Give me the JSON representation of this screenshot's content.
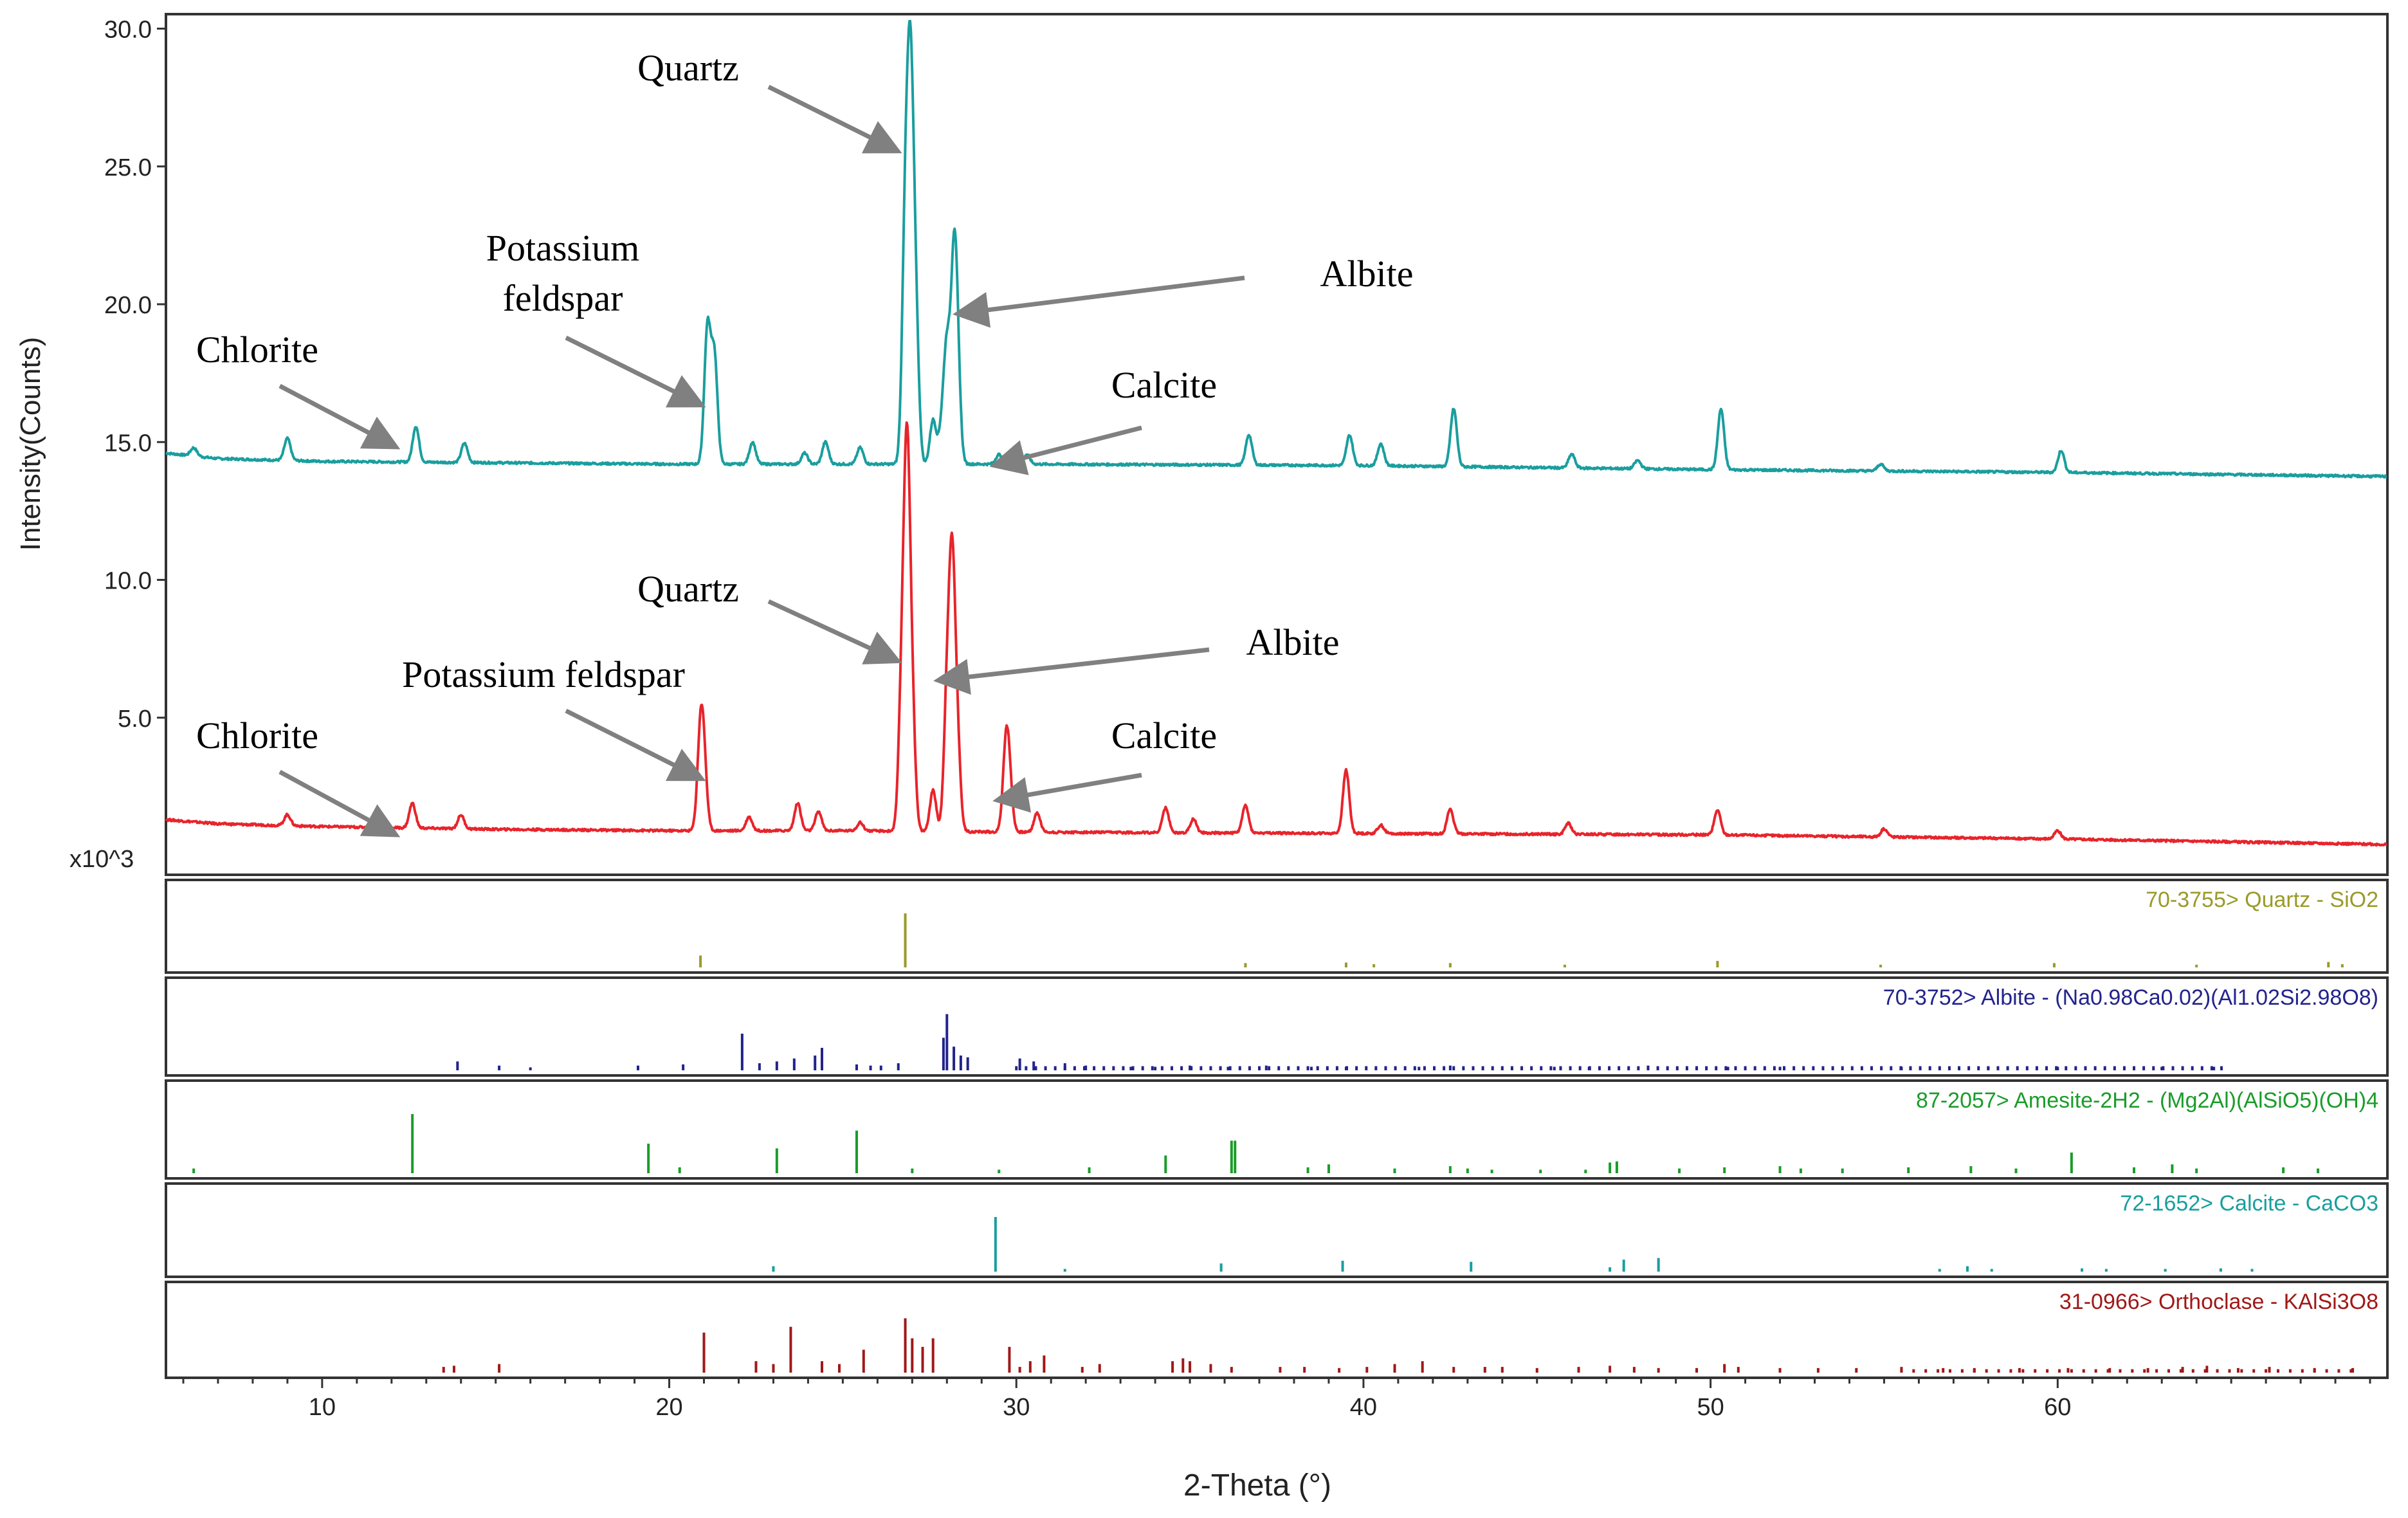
{
  "chart_data": {
    "type": "line",
    "xlabel": "2-Theta (°)",
    "ylabel": "Intensity(Counts)",
    "y_multiplier": "x10^3",
    "xlim": [
      5.5,
      69.5
    ],
    "ylim": [
      0,
      30
    ],
    "x_ticks": [
      10,
      20,
      30,
      40,
      50,
      60
    ],
    "y_ticks": [
      "5.0",
      "10.0",
      "15.0",
      "20.0",
      "25.0",
      "30.0"
    ],
    "series": [
      {
        "color": "#1a9e9e",
        "baseline": [
          [
            5.5,
            14.6
          ],
          [
            7,
            14.4
          ],
          [
            10,
            14.3
          ],
          [
            15,
            14.25
          ],
          [
            20,
            14.2
          ],
          [
            25,
            14.2
          ],
          [
            30,
            14.2
          ],
          [
            40,
            14.15
          ],
          [
            50,
            14.0
          ],
          [
            60,
            13.9
          ],
          [
            69.5,
            13.75
          ]
        ],
        "peaks": [
          [
            6.3,
            0.3
          ],
          [
            9.0,
            0.8
          ],
          [
            12.7,
            1.3
          ],
          [
            14.1,
            0.7
          ],
          [
            21.1,
            4.9
          ],
          [
            21.3,
            3.9
          ],
          [
            22.4,
            0.8
          ],
          [
            23.9,
            0.4
          ],
          [
            24.5,
            0.8
          ],
          [
            25.5,
            0.6
          ],
          [
            26.8,
            8.4
          ],
          [
            26.95,
            12.6
          ],
          [
            27.1,
            5.0
          ],
          [
            27.6,
            1.6
          ],
          [
            27.85,
            1.2
          ],
          [
            28.0,
            4.0
          ],
          [
            28.2,
            6.5
          ],
          [
            28.3,
            3.0
          ],
          [
            29.5,
            0.35
          ],
          [
            30.3,
            0.35
          ],
          [
            36.7,
            1.1
          ],
          [
            39.6,
            1.1
          ],
          [
            40.5,
            0.8
          ],
          [
            42.6,
            2.1
          ],
          [
            46.0,
            0.5
          ],
          [
            47.9,
            0.3
          ],
          [
            50.3,
            2.2
          ],
          [
            54.9,
            0.25
          ],
          [
            60.1,
            0.8
          ]
        ]
      },
      {
        "color": "#e8242b",
        "baseline": [
          [
            5.5,
            1.3
          ],
          [
            7,
            1.15
          ],
          [
            10,
            1.05
          ],
          [
            15,
            0.95
          ],
          [
            20,
            0.9
          ],
          [
            25,
            0.9
          ],
          [
            30,
            0.85
          ],
          [
            40,
            0.8
          ],
          [
            50,
            0.75
          ],
          [
            60,
            0.6
          ],
          [
            69.5,
            0.4
          ]
        ],
        "peaks": [
          [
            9.0,
            0.4
          ],
          [
            12.6,
            0.9
          ],
          [
            14.0,
            0.5
          ],
          [
            20.9,
            3.3
          ],
          [
            21.0,
            2.0
          ],
          [
            22.3,
            0.5
          ],
          [
            23.7,
            1.0
          ],
          [
            24.3,
            0.7
          ],
          [
            25.5,
            0.3
          ],
          [
            26.7,
            5.0
          ],
          [
            26.85,
            12.6
          ],
          [
            27.0,
            4.0
          ],
          [
            27.6,
            1.5
          ],
          [
            28.0,
            4.5
          ],
          [
            28.15,
            8.9
          ],
          [
            28.3,
            3.0
          ],
          [
            29.7,
            2.9
          ],
          [
            29.8,
            1.5
          ],
          [
            30.6,
            0.7
          ],
          [
            34.3,
            0.9
          ],
          [
            35.1,
            0.5
          ],
          [
            36.6,
            1.0
          ],
          [
            39.5,
            2.3
          ],
          [
            40.5,
            0.3
          ],
          [
            42.5,
            0.9
          ],
          [
            45.9,
            0.4
          ],
          [
            50.2,
            0.9
          ],
          [
            55.0,
            0.3
          ],
          [
            60.0,
            0.3
          ]
        ]
      }
    ],
    "annotations": [
      {
        "id": "quartz-top",
        "lines": [
          "Quartz"
        ]
      },
      {
        "id": "albite-top",
        "lines": [
          "Albite"
        ]
      },
      {
        "id": "kfeldspar-top",
        "lines": [
          "Potassium",
          "feldspar"
        ]
      },
      {
        "id": "chlorite-top",
        "lines": [
          "Chlorite"
        ]
      },
      {
        "id": "calcite-top",
        "lines": [
          "Calcite"
        ]
      },
      {
        "id": "quartz-bottom",
        "lines": [
          "Quartz"
        ]
      },
      {
        "id": "albite-bottom",
        "lines": [
          "Albite"
        ]
      },
      {
        "id": "kfeldspar-bottom",
        "lines": [
          "Potassium  feldspar"
        ]
      },
      {
        "id": "chlorite-bottom",
        "lines": [
          "Chlorite"
        ]
      },
      {
        "id": "calcite-bottom",
        "lines": [
          "Calcite"
        ]
      }
    ],
    "reference_patterns": [
      {
        "label": "70-3755> Quartz - SiO2",
        "color": "#9a9a2a",
        "sticks": [
          [
            20.9,
            0.22
          ],
          [
            26.8,
            1.0
          ],
          [
            36.6,
            0.08
          ],
          [
            39.5,
            0.09
          ],
          [
            40.3,
            0.06
          ],
          [
            42.5,
            0.08
          ],
          [
            45.8,
            0.05
          ],
          [
            50.2,
            0.12
          ],
          [
            54.9,
            0.05
          ],
          [
            59.9,
            0.08
          ],
          [
            64.0,
            0.05
          ],
          [
            67.8,
            0.1
          ],
          [
            68.2,
            0.06
          ]
        ]
      },
      {
        "label": "70-3752> Albite - (Na0.98Ca0.02)(Al1.02Si2.98O8)",
        "color": "#23238c",
        "sticks": [
          [
            13.9,
            0.15
          ],
          [
            15.1,
            0.08
          ],
          [
            16.0,
            0.05
          ],
          [
            19.1,
            0.08
          ],
          [
            20.4,
            0.1
          ],
          [
            22.1,
            0.62
          ],
          [
            22.6,
            0.12
          ],
          [
            23.1,
            0.15
          ],
          [
            23.6,
            0.2
          ],
          [
            24.2,
            0.25
          ],
          [
            24.4,
            0.38
          ],
          [
            25.4,
            0.1
          ],
          [
            25.8,
            0.08
          ],
          [
            26.1,
            0.08
          ],
          [
            26.6,
            0.12
          ],
          [
            27.9,
            0.55
          ],
          [
            28.0,
            0.95
          ],
          [
            28.2,
            0.4
          ],
          [
            28.4,
            0.25
          ],
          [
            28.6,
            0.22
          ],
          [
            30.1,
            0.2
          ],
          [
            30.5,
            0.15
          ],
          [
            31.4,
            0.12
          ],
          [
            32.0,
            0.08
          ],
          [
            33.3,
            0.06
          ],
          [
            34.0,
            0.06
          ],
          [
            35.0,
            0.08
          ],
          [
            36.1,
            0.06
          ],
          [
            37.2,
            0.08
          ],
          [
            38.5,
            0.06
          ],
          [
            39.5,
            0.06
          ],
          [
            41.6,
            0.06
          ],
          [
            42.5,
            0.08
          ],
          [
            45.5,
            0.06
          ],
          [
            46.5,
            0.06
          ],
          [
            48.2,
            0.08
          ],
          [
            50.5,
            0.06
          ],
          [
            52.0,
            0.06
          ],
          [
            55.5,
            0.06
          ],
          [
            58.0,
            0.06
          ],
          [
            60.0,
            0.06
          ],
          [
            63.0,
            0.06
          ],
          [
            64.5,
            0.06
          ]
        ],
        "dense_start": 30.0,
        "dense_end": 64.8,
        "dense_step": 0.28,
        "dense_height": 0.07
      },
      {
        "label": "87-2057> Amesite-2H2 - (Mg2Al)(AlSiO5)(OH)4",
        "color": "#1a9c2a",
        "sticks": [
          [
            6.3,
            0.08
          ],
          [
            12.6,
            1.0
          ],
          [
            19.4,
            0.5
          ],
          [
            20.3,
            0.1
          ],
          [
            23.1,
            0.42
          ],
          [
            25.4,
            0.72
          ],
          [
            27.0,
            0.08
          ],
          [
            29.5,
            0.06
          ],
          [
            32.1,
            0.1
          ],
          [
            34.3,
            0.3
          ],
          [
            36.2,
            0.55
          ],
          [
            36.3,
            0.55
          ],
          [
            38.4,
            0.1
          ],
          [
            39.0,
            0.15
          ],
          [
            40.9,
            0.08
          ],
          [
            42.5,
            0.12
          ],
          [
            43.0,
            0.08
          ],
          [
            43.7,
            0.06
          ],
          [
            45.1,
            0.06
          ],
          [
            46.4,
            0.06
          ],
          [
            47.1,
            0.18
          ],
          [
            47.3,
            0.2
          ],
          [
            49.1,
            0.08
          ],
          [
            50.4,
            0.1
          ],
          [
            52.0,
            0.12
          ],
          [
            52.6,
            0.08
          ],
          [
            53.8,
            0.08
          ],
          [
            55.7,
            0.1
          ],
          [
            57.5,
            0.12
          ],
          [
            58.8,
            0.08
          ],
          [
            60.4,
            0.35
          ],
          [
            62.2,
            0.1
          ],
          [
            63.3,
            0.15
          ],
          [
            64.0,
            0.08
          ],
          [
            66.5,
            0.1
          ],
          [
            67.5,
            0.08
          ]
        ]
      },
      {
        "label": "72-1652> Calcite - CaCO3",
        "color": "#1a9e9e",
        "sticks": [
          [
            23.0,
            0.1
          ],
          [
            29.4,
            1.0
          ],
          [
            31.4,
            0.05
          ],
          [
            35.9,
            0.15
          ],
          [
            39.4,
            0.2
          ],
          [
            43.1,
            0.18
          ],
          [
            47.1,
            0.08
          ],
          [
            47.5,
            0.22
          ],
          [
            48.5,
            0.25
          ],
          [
            56.6,
            0.05
          ],
          [
            57.4,
            0.1
          ],
          [
            58.1,
            0.05
          ],
          [
            60.7,
            0.06
          ],
          [
            61.4,
            0.05
          ],
          [
            63.1,
            0.05
          ],
          [
            64.7,
            0.06
          ],
          [
            65.6,
            0.05
          ]
        ]
      },
      {
        "label": "31-0966> Orthoclase - KAlSi3O8",
        "color": "#a01818",
        "sticks": [
          [
            13.5,
            0.1
          ],
          [
            13.8,
            0.12
          ],
          [
            15.1,
            0.15
          ],
          [
            21.0,
            0.7
          ],
          [
            22.5,
            0.2
          ],
          [
            23.0,
            0.15
          ],
          [
            23.5,
            0.8
          ],
          [
            24.4,
            0.2
          ],
          [
            24.9,
            0.15
          ],
          [
            25.6,
            0.4
          ],
          [
            26.8,
            0.95
          ],
          [
            27.0,
            0.6
          ],
          [
            27.3,
            0.45
          ],
          [
            27.6,
            0.6
          ],
          [
            29.8,
            0.45
          ],
          [
            30.1,
            0.1
          ],
          [
            30.4,
            0.2
          ],
          [
            30.8,
            0.3
          ],
          [
            31.9,
            0.1
          ],
          [
            32.4,
            0.15
          ],
          [
            34.5,
            0.2
          ],
          [
            34.8,
            0.25
          ],
          [
            35.0,
            0.2
          ],
          [
            35.6,
            0.15
          ],
          [
            36.2,
            0.1
          ],
          [
            37.6,
            0.1
          ],
          [
            38.3,
            0.1
          ],
          [
            39.3,
            0.08
          ],
          [
            40.1,
            0.1
          ],
          [
            40.9,
            0.15
          ],
          [
            41.7,
            0.2
          ],
          [
            42.6,
            0.1
          ],
          [
            43.5,
            0.1
          ],
          [
            44.0,
            0.1
          ],
          [
            45.0,
            0.08
          ],
          [
            46.2,
            0.1
          ],
          [
            47.1,
            0.12
          ],
          [
            47.8,
            0.1
          ],
          [
            48.5,
            0.08
          ],
          [
            49.6,
            0.08
          ],
          [
            50.4,
            0.15
          ],
          [
            50.8,
            0.1
          ],
          [
            52.0,
            0.08
          ],
          [
            53.1,
            0.08
          ],
          [
            54.2,
            0.08
          ],
          [
            55.5,
            0.1
          ],
          [
            56.7,
            0.08
          ],
          [
            57.6,
            0.08
          ],
          [
            58.9,
            0.08
          ],
          [
            60.3,
            0.08
          ],
          [
            61.5,
            0.08
          ],
          [
            62.6,
            0.08
          ],
          [
            63.6,
            0.1
          ],
          [
            64.3,
            0.12
          ],
          [
            65.2,
            0.08
          ],
          [
            66.1,
            0.1
          ],
          [
            67.4,
            0.08
          ],
          [
            68.5,
            0.08
          ]
        ],
        "dense_start": 55.5,
        "dense_end": 68.5,
        "dense_step": 0.35,
        "dense_height": 0.06
      }
    ]
  }
}
